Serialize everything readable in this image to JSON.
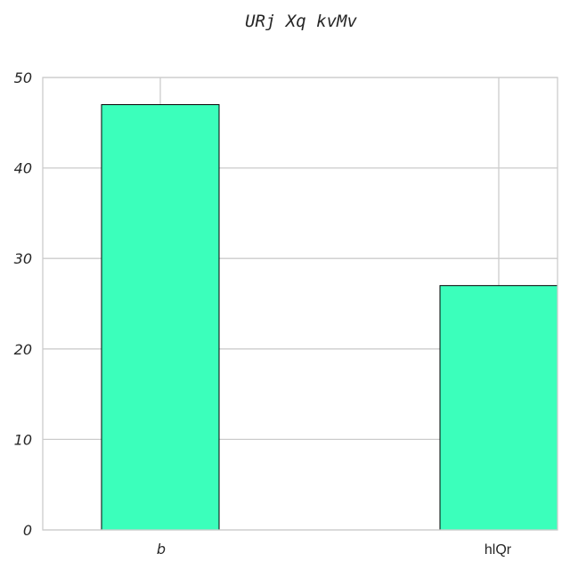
{
  "chart_data": {
    "type": "bar",
    "title": "URj Xq kvMv",
    "xlabel": "",
    "ylabel": "",
    "categories": [
      "b",
      "hlQr"
    ],
    "values": [
      47,
      27
    ],
    "ylim": [
      0,
      50
    ],
    "yticks": [
      "0",
      "10",
      "20",
      "30",
      "40",
      "50"
    ],
    "grid": true,
    "bar_color": "#3bffbb"
  }
}
